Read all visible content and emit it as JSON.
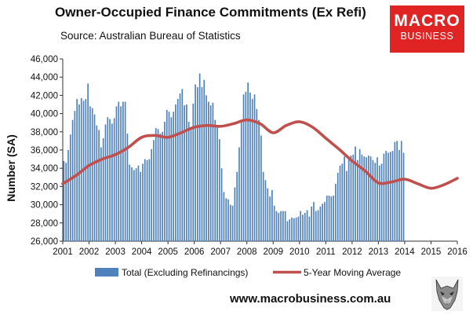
{
  "title": "Owner-Occupied Finance Commitments (Ex Refi)",
  "subtitle": "Source: Australian  Bureau of Statistics",
  "logo": {
    "line1": "MACRO",
    "line2": "BUSINESS",
    "color": "#e02424"
  },
  "footer_url": "www.macrobusiness.com.au",
  "wolf_icon": "wolf-icon",
  "chart_data": {
    "type": "bar",
    "ylabel": "Number (SA)",
    "ylim": [
      26000,
      46000
    ],
    "ytick_step": 2000,
    "ytick_labels": [
      "26,000",
      "28,000",
      "30,000",
      "32,000",
      "34,000",
      "36,000",
      "38,000",
      "40,000",
      "42,000",
      "44,000",
      "46,000"
    ],
    "x_labels": [
      "2001",
      "2002",
      "2003",
      "2004",
      "2005",
      "2006",
      "2007",
      "2008",
      "2009",
      "2010",
      "2011",
      "2012",
      "2013",
      "2014",
      "2015",
      "2016"
    ],
    "grid": false,
    "legend_position": "bottom",
    "bar_color": "#4f81bd",
    "line_color": "#c0504d",
    "series": [
      {
        "name": "Total (Excluding Refinancings)",
        "kind": "bar",
        "start": "2001-01",
        "frequency": "monthly",
        "values": [
          34800,
          34600,
          36000,
          37700,
          39300,
          40300,
          41600,
          41000,
          41700,
          41400,
          41600,
          43300,
          40800,
          40600,
          39900,
          38700,
          38200,
          36300,
          37300,
          38800,
          39600,
          39400,
          38900,
          39500,
          40800,
          41300,
          40800,
          41300,
          41300,
          37800,
          34400,
          34100,
          33800,
          34000,
          34300,
          33600,
          34500,
          35000,
          34900,
          35000,
          36100,
          37100,
          38400,
          38300,
          37800,
          38000,
          39100,
          40400,
          40200,
          39600,
          40200,
          41000,
          41600,
          42200,
          42700,
          40900,
          41000,
          39100,
          38500,
          41100,
          43200,
          42900,
          44400,
          42900,
          43700,
          42000,
          41300,
          40900,
          41200,
          39300,
          38600,
          37200,
          34000,
          31400,
          30700,
          30600,
          30000,
          29900,
          31900,
          33600,
          36300,
          39100,
          42100,
          42400,
          43400,
          42300,
          41600,
          42100,
          40500,
          39300,
          37600,
          33600,
          32700,
          31800,
          30900,
          31600,
          29900,
          29300,
          29100,
          29300,
          29300,
          29300,
          28200,
          28400,
          28600,
          28500,
          28600,
          28700,
          29300,
          28900,
          29100,
          29400,
          28700,
          29800,
          30300,
          29300,
          29400,
          29800,
          30100,
          30300,
          31000,
          31000,
          30900,
          31000,
          32300,
          33500,
          34300,
          34500,
          35300,
          33700,
          35000,
          35400,
          35500,
          36400,
          34900,
          36100,
          35500,
          35300,
          35200,
          35400,
          35300,
          34900,
          34600,
          35200,
          34300,
          34500,
          35600,
          35900,
          35700,
          35800,
          35900,
          36900,
          37000,
          36000,
          37000,
          35700
        ]
      },
      {
        "name": "5-Year Moving Average",
        "kind": "line",
        "points": [
          {
            "x": "2001-01",
            "y": 32300
          },
          {
            "x": "2001-07",
            "y": 33200
          },
          {
            "x": "2002-01",
            "y": 34300
          },
          {
            "x": "2002-07",
            "y": 35000
          },
          {
            "x": "2003-01",
            "y": 35500
          },
          {
            "x": "2003-07",
            "y": 36300
          },
          {
            "x": "2004-01",
            "y": 37400
          },
          {
            "x": "2004-07",
            "y": 37600
          },
          {
            "x": "2005-01",
            "y": 37400
          },
          {
            "x": "2005-07",
            "y": 37900
          },
          {
            "x": "2006-01",
            "y": 38500
          },
          {
            "x": "2006-07",
            "y": 38700
          },
          {
            "x": "2007-01",
            "y": 38600
          },
          {
            "x": "2007-07",
            "y": 38900
          },
          {
            "x": "2008-01",
            "y": 39300
          },
          {
            "x": "2008-07",
            "y": 38900
          },
          {
            "x": "2009-01",
            "y": 37900
          },
          {
            "x": "2009-07",
            "y": 38700
          },
          {
            "x": "2010-01",
            "y": 39100
          },
          {
            "x": "2010-07",
            "y": 38500
          },
          {
            "x": "2011-01",
            "y": 37300
          },
          {
            "x": "2011-07",
            "y": 36100
          },
          {
            "x": "2012-01",
            "y": 34800
          },
          {
            "x": "2012-07",
            "y": 33700
          },
          {
            "x": "2013-01",
            "y": 32400
          },
          {
            "x": "2013-07",
            "y": 32500
          },
          {
            "x": "2014-01",
            "y": 32800
          },
          {
            "x": "2014-07",
            "y": 32300
          },
          {
            "x": "2015-01",
            "y": 31800
          },
          {
            "x": "2015-07",
            "y": 32200
          },
          {
            "x": "2016-01",
            "y": 32900
          }
        ]
      }
    ]
  }
}
